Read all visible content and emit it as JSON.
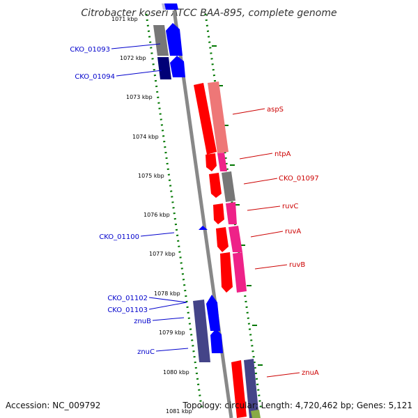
{
  "title": "Citrobacter koseri ATCC BAA-895, complete genome",
  "accession": "Accession: NC_009792",
  "summary": "Topology: circular; Length: 4,720,462 bp; Genes: 5,121",
  "colors": {
    "left_label": "#0000cc",
    "right_label": "#cc0000",
    "tick_dots": "#007700",
    "backbone": "#888888"
  },
  "ticks": [
    "1071 kbp",
    "1072 kbp",
    "1073 kbp",
    "1074 kbp",
    "1075 kbp",
    "1076 kbp",
    "1077 kbp",
    "1078 kbp",
    "1079 kbp",
    "1080 kbp",
    "1081 kbp"
  ],
  "left_labels": [
    "CKO_01093",
    "CKO_01094",
    "CKO_01100",
    "CKO_01102",
    "CKO_01103",
    "znuB",
    "znuC"
  ],
  "right_labels": [
    "aspS",
    "ntpA",
    "CKO_01097",
    "ruvC",
    "ruvA",
    "ruvB",
    "znuA"
  ]
}
